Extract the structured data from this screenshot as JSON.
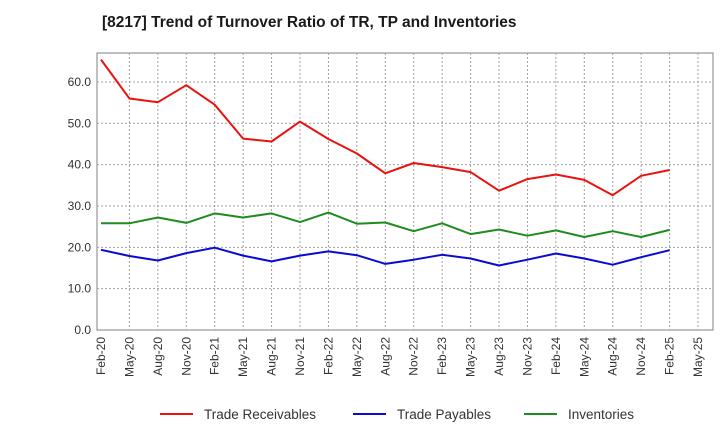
{
  "chart_data": {
    "type": "line",
    "title": "[8217]  Trend of Turnover Ratio of TR, TP and Inventories",
    "xlabel": "",
    "ylabel": "",
    "x": [
      "Feb-20",
      "May-20",
      "Aug-20",
      "Nov-20",
      "Feb-21",
      "May-21",
      "Aug-21",
      "Nov-21",
      "Feb-22",
      "May-22",
      "Aug-22",
      "Nov-22",
      "Feb-23",
      "May-23",
      "Aug-23",
      "Nov-23",
      "Feb-24",
      "May-24",
      "Aug-24",
      "Nov-24",
      "Feb-25"
    ],
    "x_ticks": [
      "Feb-20",
      "May-20",
      "Aug-20",
      "Nov-20",
      "Feb-21",
      "May-21",
      "Aug-21",
      "Nov-21",
      "Feb-22",
      "May-22",
      "Aug-22",
      "Nov-22",
      "Feb-23",
      "May-23",
      "Aug-23",
      "Nov-23",
      "Feb-24",
      "May-24",
      "Aug-24",
      "Nov-24",
      "Feb-25",
      "May-25"
    ],
    "y_ticks": [
      "0.0",
      "10.0",
      "20.0",
      "30.0",
      "40.0",
      "50.0",
      "60.0"
    ],
    "ylim": [
      0,
      67
    ],
    "grid": true,
    "legend_position": "bottom",
    "series": [
      {
        "name": "Trade Receivables",
        "color": "#e8130f",
        "values": [
          65.4,
          56.0,
          55.1,
          59.2,
          54.5,
          46.3,
          45.6,
          50.4,
          46.2,
          42.7,
          37.9,
          40.4,
          39.4,
          38.2,
          33.7,
          36.5,
          37.6,
          36.3,
          32.6,
          37.3,
          38.7
        ]
      },
      {
        "name": "Trade Payables",
        "color": "#0a0ad2",
        "values": [
          19.4,
          17.9,
          16.8,
          18.6,
          19.9,
          18.0,
          16.6,
          18.0,
          19.0,
          18.1,
          16.0,
          17.0,
          18.2,
          17.3,
          15.6,
          17.0,
          18.5,
          17.3,
          15.8,
          17.6,
          19.3
        ]
      },
      {
        "name": "Inventories",
        "color": "#1e8c1e",
        "values": [
          25.8,
          25.8,
          27.2,
          25.9,
          28.2,
          27.2,
          28.2,
          26.1,
          28.4,
          25.7,
          26.0,
          23.9,
          25.8,
          23.2,
          24.3,
          22.8,
          24.1,
          22.5,
          23.9,
          22.5,
          24.2
        ]
      }
    ]
  }
}
